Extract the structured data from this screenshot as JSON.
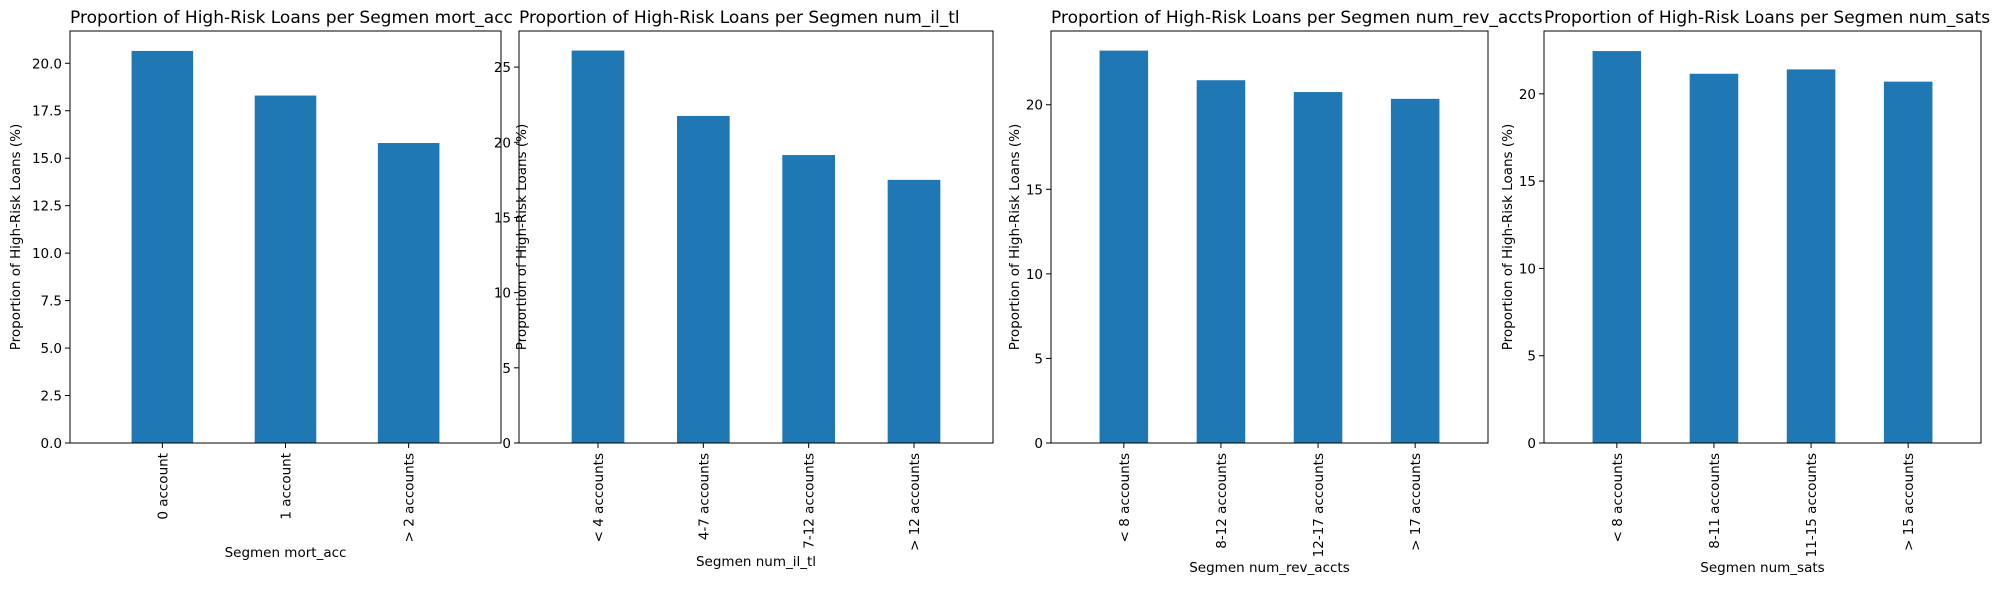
{
  "chart_data": [
    {
      "type": "bar",
      "title": "Proportion of High-Risk Loans per Segmen mort_acc",
      "xlabel": "Segmen mort_acc",
      "ylabel": "Proportion of High-Risk Loans (%)",
      "categories": [
        "0 account",
        "1 account",
        "> 2 accounts"
      ],
      "values": [
        20.65,
        18.3,
        15.8
      ],
      "ylim": [
        0,
        21.7
      ],
      "yticks": [
        "0.0",
        "2.5",
        "5.0",
        "7.5",
        "10.0",
        "12.5",
        "15.0",
        "17.5",
        "20.0"
      ],
      "color": "#1f77b4"
    },
    {
      "type": "bar",
      "title": "Proportion of High-Risk Loans per Segmen num_il_tl",
      "xlabel": "Segmen num_il_tl",
      "ylabel": "Proportion of High-Risk Loans (%)",
      "categories": [
        "< 4 accounts",
        "4-7 accounts",
        "7-12 accounts",
        "> 12 accounts"
      ],
      "values": [
        26.1,
        21.75,
        19.15,
        17.5
      ],
      "ylim": [
        0,
        27.4
      ],
      "yticks": [
        "0",
        "5",
        "10",
        "15",
        "20",
        "25"
      ],
      "color": "#1f77b4"
    },
    {
      "type": "bar",
      "title": "Proportion of High-Risk Loans per Segmen num_rev_accts",
      "xlabel": "Segmen num_rev_accts",
      "ylabel": "Proportion of High-Risk Loans (%)",
      "categories": [
        "< 8 accounts",
        "8-12 accounts",
        "12-17 accounts",
        "> 17 accounts"
      ],
      "values": [
        23.2,
        21.45,
        20.75,
        20.35
      ],
      "ylim": [
        0,
        24.36
      ],
      "yticks": [
        "0",
        "5",
        "10",
        "15",
        "20"
      ],
      "color": "#1f77b4"
    },
    {
      "type": "bar",
      "title": "Proportion of High-Risk Loans per Segmen num_sats",
      "xlabel": "Segmen num_sats",
      "ylabel": "Proportion of High-Risk Loans (%)",
      "categories": [
        "< 8 accounts",
        "8-11 accounts",
        "11-15 accounts",
        "> 15 accounts"
      ],
      "values": [
        22.45,
        21.15,
        21.4,
        20.7
      ],
      "ylim": [
        0,
        23.6
      ],
      "yticks": [
        "0",
        "5",
        "10",
        "15",
        "20"
      ],
      "color": "#1f77b4"
    }
  ]
}
